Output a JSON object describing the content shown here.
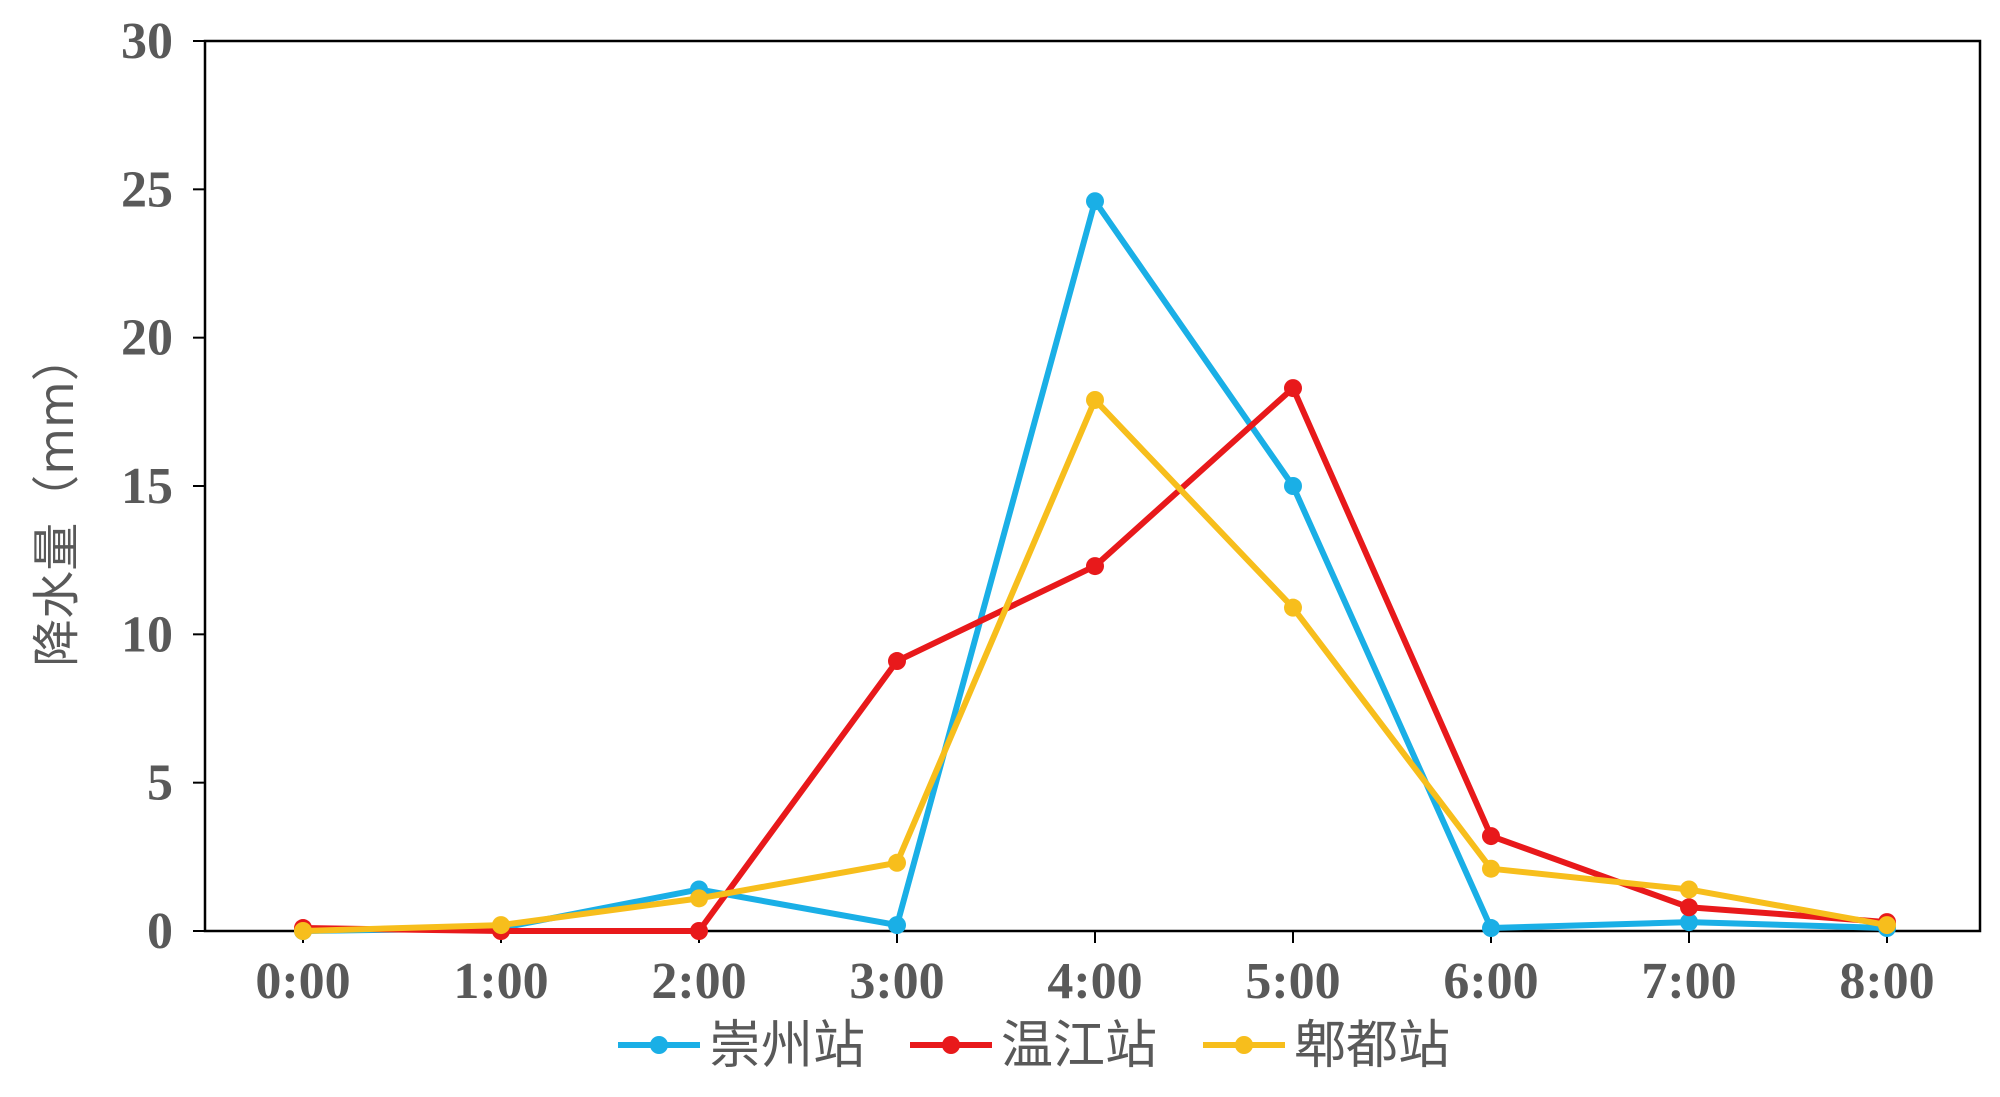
{
  "chart_data": {
    "type": "line",
    "title": "",
    "xlabel": "",
    "ylabel": "降水量（mm）",
    "categories": [
      "0:00",
      "1:00",
      "2:00",
      "3:00",
      "4:00",
      "5:00",
      "6:00",
      "7:00",
      "8:00"
    ],
    "ylim": [
      0,
      30
    ],
    "yticks": [
      0,
      5,
      10,
      15,
      20,
      25,
      30
    ],
    "grid": false,
    "legend_position": "bottom",
    "series": [
      {
        "name": "崇州站",
        "color": "#1AAFE6",
        "values": [
          0.0,
          0.1,
          1.4,
          0.2,
          24.6,
          15.0,
          0.1,
          0.3,
          0.1
        ]
      },
      {
        "name": "温江站",
        "color": "#E8191B",
        "values": [
          0.1,
          0.0,
          0.0,
          9.1,
          12.3,
          18.3,
          3.2,
          0.8,
          0.3
        ]
      },
      {
        "name": "郫都站",
        "color": "#F7BE1C",
        "values": [
          0.0,
          0.2,
          1.1,
          2.3,
          17.9,
          10.9,
          2.1,
          1.4,
          0.2
        ]
      }
    ]
  }
}
